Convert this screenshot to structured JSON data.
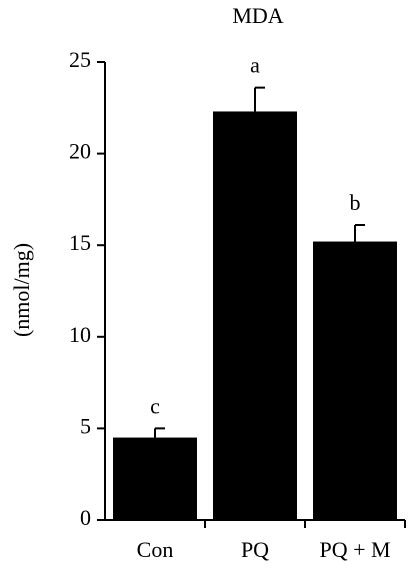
{
  "chart_data": {
    "type": "bar",
    "title": "MDA",
    "y_label": "(nmol/mg)",
    "categories": [
      "Con",
      "PQ",
      "PQ + M"
    ],
    "values": [
      4.5,
      22.3,
      15.2
    ],
    "errors": [
      0.5,
      1.3,
      0.9
    ],
    "annotations": [
      "c",
      "a",
      "b"
    ],
    "color": "#000000",
    "ylim": [
      0,
      25
    ],
    "yticks": [
      0,
      5,
      10,
      15,
      20,
      25
    ],
    "grid": false
  }
}
